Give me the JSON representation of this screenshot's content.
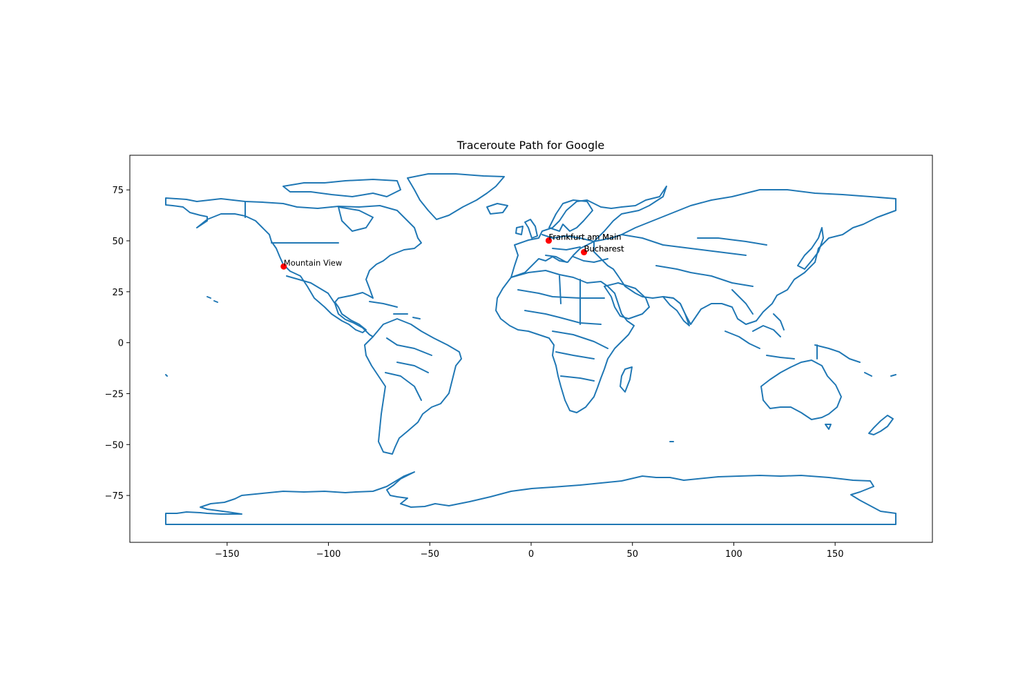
{
  "chart_data": {
    "type": "scatter",
    "title": "Traceroute Path for Google",
    "xlabel": "",
    "ylabel": "",
    "xlim": [
      -198,
      198
    ],
    "ylim": [
      -98,
      92
    ],
    "xticks": [
      -150,
      -100,
      -50,
      0,
      50,
      100,
      150
    ],
    "yticks": [
      -75,
      -50,
      -25,
      0,
      25,
      50,
      75
    ],
    "xtick_labels": [
      "−150",
      "−100",
      "−50",
      "0",
      "50",
      "100",
      "150"
    ],
    "ytick_labels": [
      "−75",
      "−50",
      "−25",
      "0",
      "25",
      "50",
      "75"
    ],
    "grid": false,
    "basemap": "world country borders (outline)",
    "colors": {
      "borders": "#1f77b4",
      "points": "#ff0000"
    },
    "points": [
      {
        "label": "Mountain View",
        "x": -122.08,
        "y": 37.39
      },
      {
        "label": "Frankfurt am Main",
        "x": 8.68,
        "y": 50.11
      },
      {
        "label": "Frankfurt am Main",
        "x": 8.68,
        "y": 50.11
      },
      {
        "label": "Bucharest",
        "x": 26.1,
        "y": 44.43
      },
      {
        "label": "Bucharest",
        "x": 26.1,
        "y": 44.43
      }
    ]
  }
}
